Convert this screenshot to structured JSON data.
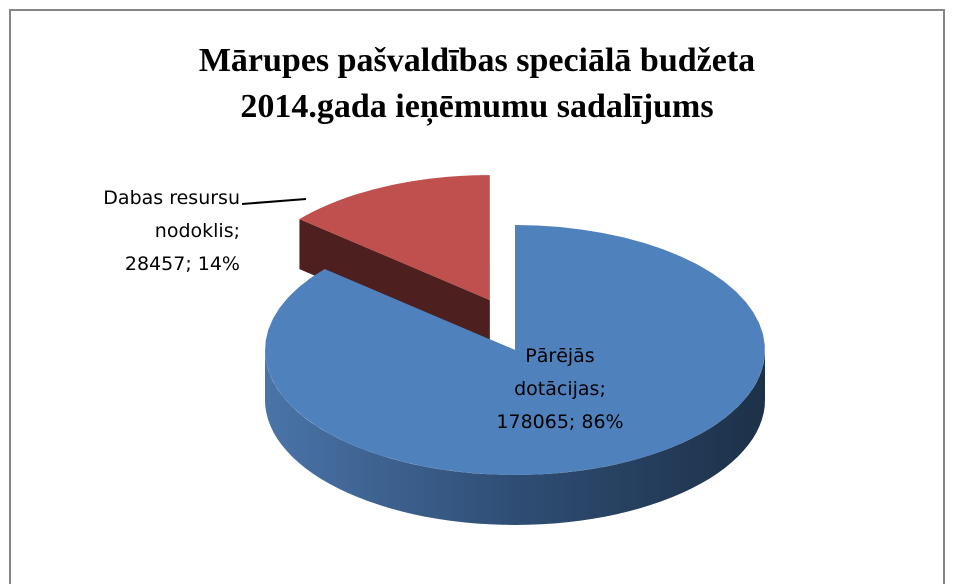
{
  "chart_data": {
    "type": "pie3d",
    "title": "Mārupes pašvaldības speciālā budžeta 2014.gada ieņēmumu sadalījums",
    "categories": [
      "Pārējās dotācijas;",
      "Dabas resursu nodoklis;"
    ],
    "values": [
      178065,
      28457
    ],
    "value_labels": [
      "178065; 86%",
      "28457; 14%"
    ],
    "colors": [
      "#4f81bd",
      "#c0504d"
    ],
    "exploded": [
      false,
      true
    ]
  }
}
